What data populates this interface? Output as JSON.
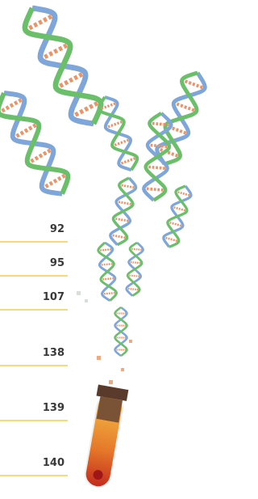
{
  "values": [
    92,
    95,
    107,
    138,
    139,
    140
  ]
}
